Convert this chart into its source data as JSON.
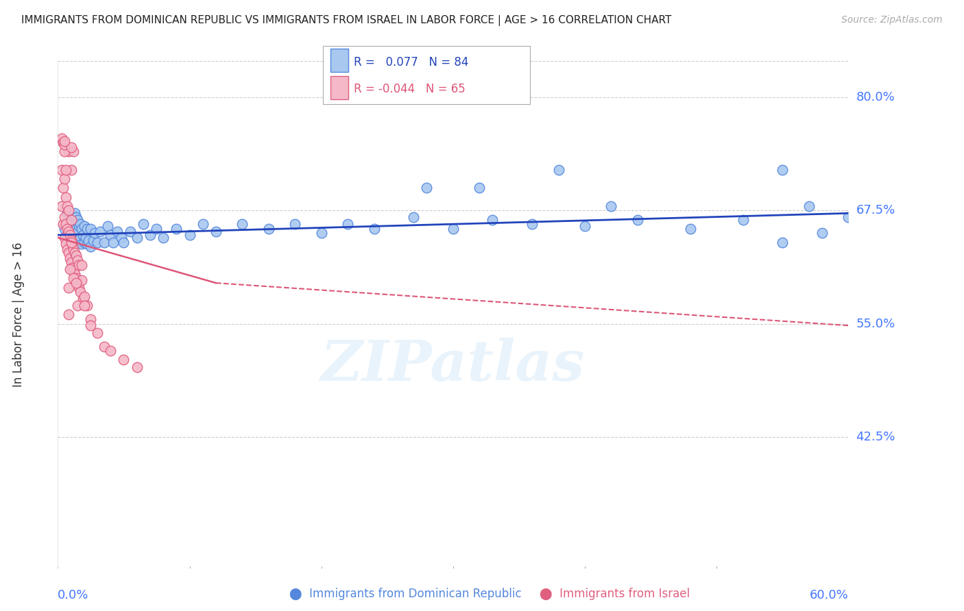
{
  "title": "IMMIGRANTS FROM DOMINICAN REPUBLIC VS IMMIGRANTS FROM ISRAEL IN LABOR FORCE | AGE > 16 CORRELATION CHART",
  "source": "Source: ZipAtlas.com",
  "ylabel": "In Labor Force | Age > 16",
  "xlim": [
    0.0,
    0.6
  ],
  "ylim": [
    0.28,
    0.84
  ],
  "blue_R": 0.077,
  "blue_N": 84,
  "pink_R": -0.044,
  "pink_N": 65,
  "blue_color": "#a8c8f0",
  "pink_color": "#f5b8c8",
  "blue_edge_color": "#5588dd",
  "pink_edge_color": "#e06080",
  "blue_line_color": "#2244bb",
  "pink_line_color": "#dd5577",
  "grid_color": "#cccccc",
  "axis_label_color": "#4477ff",
  "watermark": "ZIPatlas",
  "ytick_vals": [
    0.425,
    0.55,
    0.675,
    0.8
  ],
  "ytick_labels": [
    "42.5%",
    "55.0%",
    "67.5%",
    "80.0%"
  ],
  "blue_line_x0": 0.0,
  "blue_line_y0": 0.648,
  "blue_line_x1": 0.6,
  "blue_line_y1": 0.672,
  "pink_line_solid_x0": 0.0,
  "pink_line_solid_y0": 0.645,
  "pink_line_solid_x1": 0.12,
  "pink_line_solid_y1": 0.595,
  "pink_line_dash_x0": 0.12,
  "pink_line_dash_y0": 0.595,
  "pink_line_dash_x1": 0.6,
  "pink_line_dash_y1": 0.548,
  "blue_scatter_x": [
    0.005,
    0.006,
    0.007,
    0.007,
    0.008,
    0.008,
    0.009,
    0.009,
    0.01,
    0.01,
    0.01,
    0.011,
    0.011,
    0.012,
    0.012,
    0.012,
    0.013,
    0.013,
    0.013,
    0.014,
    0.014,
    0.014,
    0.015,
    0.015,
    0.015,
    0.016,
    0.016,
    0.017,
    0.017,
    0.018,
    0.018,
    0.019,
    0.02,
    0.02,
    0.021,
    0.022,
    0.022,
    0.023,
    0.025,
    0.025,
    0.027,
    0.028,
    0.03,
    0.032,
    0.035,
    0.038,
    0.04,
    0.042,
    0.045,
    0.048,
    0.05,
    0.055,
    0.06,
    0.065,
    0.07,
    0.075,
    0.08,
    0.09,
    0.1,
    0.11,
    0.12,
    0.14,
    0.16,
    0.18,
    0.2,
    0.22,
    0.24,
    0.27,
    0.3,
    0.33,
    0.36,
    0.4,
    0.44,
    0.48,
    0.52,
    0.38,
    0.28,
    0.32,
    0.55,
    0.58,
    0.6,
    0.42,
    0.55,
    0.57
  ],
  "blue_scatter_y": [
    0.655,
    0.66,
    0.648,
    0.672,
    0.658,
    0.668,
    0.652,
    0.665,
    0.645,
    0.66,
    0.67,
    0.65,
    0.665,
    0.645,
    0.658,
    0.67,
    0.648,
    0.66,
    0.672,
    0.642,
    0.655,
    0.668,
    0.64,
    0.652,
    0.665,
    0.642,
    0.658,
    0.645,
    0.66,
    0.638,
    0.655,
    0.648,
    0.64,
    0.658,
    0.645,
    0.638,
    0.655,
    0.642,
    0.635,
    0.655,
    0.642,
    0.65,
    0.64,
    0.652,
    0.64,
    0.658,
    0.648,
    0.64,
    0.652,
    0.645,
    0.64,
    0.652,
    0.645,
    0.66,
    0.648,
    0.655,
    0.645,
    0.655,
    0.648,
    0.66,
    0.652,
    0.66,
    0.655,
    0.66,
    0.65,
    0.66,
    0.655,
    0.668,
    0.655,
    0.665,
    0.66,
    0.658,
    0.665,
    0.655,
    0.665,
    0.72,
    0.7,
    0.7,
    0.64,
    0.65,
    0.668,
    0.68,
    0.72,
    0.68
  ],
  "pink_scatter_x": [
    0.003,
    0.003,
    0.004,
    0.004,
    0.005,
    0.005,
    0.005,
    0.006,
    0.006,
    0.006,
    0.007,
    0.007,
    0.007,
    0.008,
    0.008,
    0.008,
    0.009,
    0.009,
    0.01,
    0.01,
    0.01,
    0.011,
    0.011,
    0.012,
    0.012,
    0.013,
    0.013,
    0.014,
    0.014,
    0.015,
    0.015,
    0.016,
    0.016,
    0.017,
    0.018,
    0.018,
    0.019,
    0.02,
    0.022,
    0.025,
    0.03,
    0.035,
    0.04,
    0.05,
    0.06,
    0.008,
    0.008,
    0.009,
    0.012,
    0.01,
    0.015,
    0.014,
    0.02,
    0.025,
    0.008,
    0.01,
    0.012,
    0.005,
    0.006,
    0.004,
    0.003,
    0.004,
    0.005,
    0.01,
    0.005
  ],
  "pink_scatter_y": [
    0.68,
    0.72,
    0.66,
    0.7,
    0.645,
    0.668,
    0.71,
    0.638,
    0.66,
    0.69,
    0.632,
    0.655,
    0.68,
    0.628,
    0.652,
    0.675,
    0.622,
    0.648,
    0.618,
    0.642,
    0.665,
    0.612,
    0.638,
    0.608,
    0.632,
    0.605,
    0.628,
    0.6,
    0.625,
    0.595,
    0.62,
    0.59,
    0.615,
    0.585,
    0.598,
    0.615,
    0.578,
    0.58,
    0.57,
    0.555,
    0.54,
    0.525,
    0.52,
    0.51,
    0.502,
    0.56,
    0.59,
    0.61,
    0.6,
    0.64,
    0.57,
    0.595,
    0.57,
    0.548,
    0.74,
    0.72,
    0.74,
    0.74,
    0.72,
    0.75,
    0.755,
    0.75,
    0.748,
    0.745,
    0.752
  ]
}
